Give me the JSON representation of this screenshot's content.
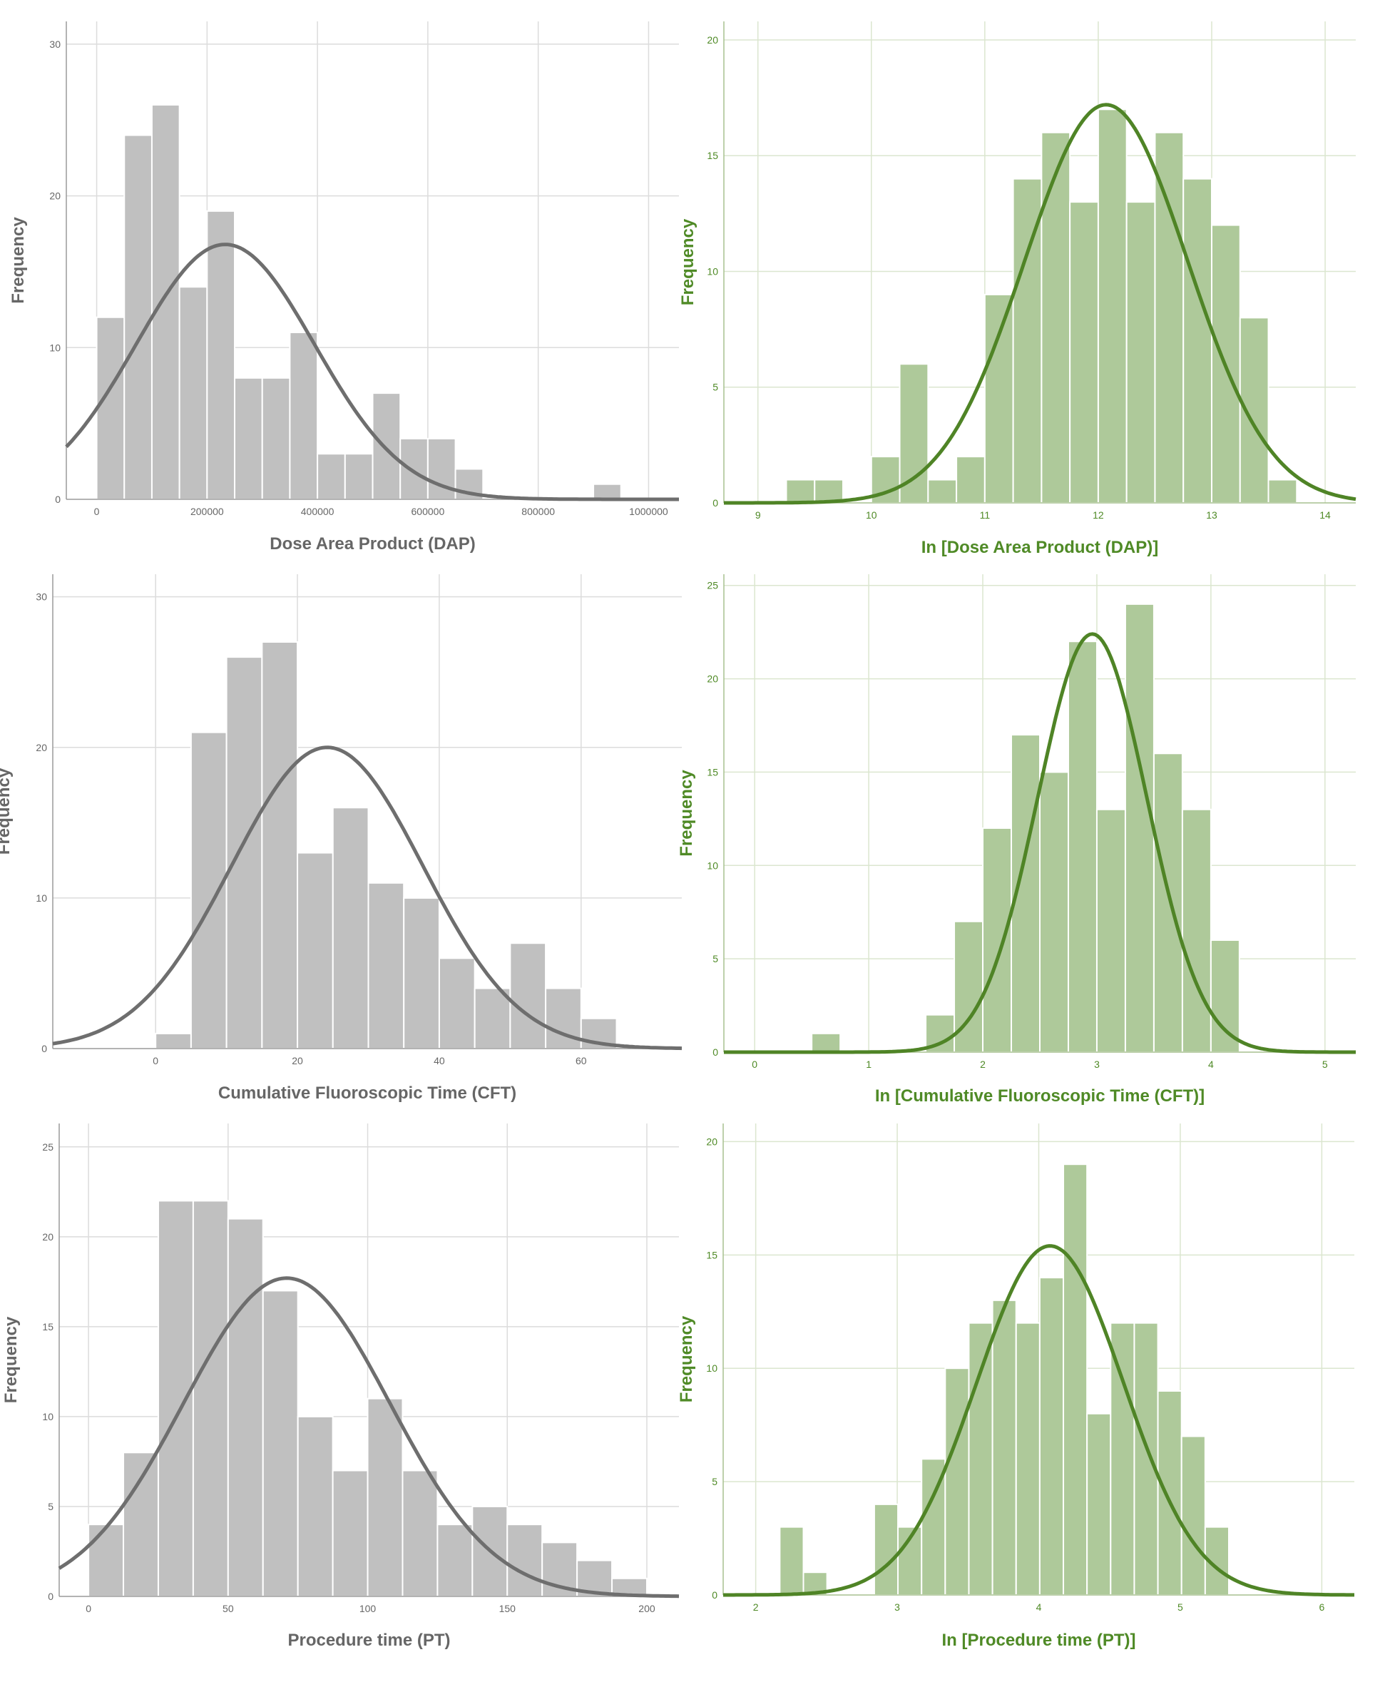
{
  "colors": {
    "gray_bar": "#c0c0c0",
    "gray_curve": "#6e6e6e",
    "gray_text": "#666666",
    "gray_grid": "#dcdcdc",
    "gray_axis": "#9a9a9a",
    "green_bar": "#aec99a",
    "green_curve": "#4f8426",
    "green_text": "#4f8a26",
    "green_grid": "#dbe6cf",
    "green_axis": "#a7c08f"
  },
  "chart_data": [
    {
      "type": "bar",
      "subtype": "histogram",
      "theme": "gray",
      "xlabel": "Dose Area Product (DAP)",
      "ylabel": "Frequency",
      "xlim": [
        -55000,
        1055000
      ],
      "ylim": [
        0,
        31.5
      ],
      "xticks": [
        0,
        200000,
        400000,
        600000,
        800000,
        1000000
      ],
      "xtick_labels": [
        "0",
        "200000",
        "400000",
        "600000",
        "800000",
        "1000000"
      ],
      "yticks": [
        0,
        10,
        20,
        30
      ],
      "bin_start": 0,
      "bin_width": 50000,
      "values": [
        12,
        24,
        26,
        14,
        19,
        8,
        8,
        11,
        3,
        3,
        7,
        4,
        4,
        2,
        0,
        0,
        0,
        0,
        1
      ],
      "normal_curve": {
        "mean": 233000,
        "peak": 16.8,
        "sd": 162000
      },
      "grid": true
    },
    {
      "type": "bar",
      "subtype": "histogram",
      "theme": "green",
      "xlabel": "In [Dose Area Product (DAP)]",
      "ylabel": "Frequency",
      "xlim": [
        8.7,
        14.27
      ],
      "ylim": [
        0,
        20.8
      ],
      "xticks": [
        9,
        10,
        11,
        12,
        13,
        14
      ],
      "xtick_labels": [
        "9",
        "10",
        "11",
        "12",
        "13",
        "14"
      ],
      "yticks": [
        0,
        5,
        10,
        15,
        20
      ],
      "bin_start": 9.25,
      "bin_width": 0.25,
      "values": [
        1,
        1,
        0,
        2,
        6,
        1,
        2,
        9,
        14,
        16,
        13,
        17,
        13,
        16,
        14,
        12,
        8,
        1
      ],
      "normal_curve": {
        "mean": 12.07,
        "peak": 17.2,
        "sd": 0.72
      },
      "grid": true
    },
    {
      "type": "bar",
      "subtype": "histogram",
      "theme": "gray",
      "xlabel": "Cumulative Fluoroscopic Time (CFT)",
      "ylabel": "Frequency",
      "xlim": [
        -14.5,
        74.2
      ],
      "ylim": [
        0,
        31.5
      ],
      "xticks": [
        0,
        20,
        40,
        60
      ],
      "xtick_labels": [
        "0",
        "20",
        "40",
        "60"
      ],
      "yticks": [
        0,
        10,
        20,
        30
      ],
      "bin_start": 0,
      "bin_width": 5,
      "values": [
        1,
        21,
        26,
        27,
        13,
        16,
        11,
        10,
        6,
        4,
        7,
        4,
        2
      ],
      "normal_curve": {
        "mean": 24.2,
        "peak": 20.0,
        "sd": 13.5
      },
      "grid": true
    },
    {
      "type": "bar",
      "subtype": "histogram",
      "theme": "green",
      "xlabel": "In [Cumulative Fluoroscopic Time (CFT)]",
      "ylabel": "Frequency",
      "xlim": [
        -0.27,
        5.27
      ],
      "ylim": [
        0,
        25.6
      ],
      "xticks": [
        0,
        1,
        2,
        3,
        4,
        5
      ],
      "xtick_labels": [
        "0",
        "1",
        "2",
        "3",
        "4",
        "5"
      ],
      "yticks": [
        0,
        5,
        10,
        15,
        20,
        25
      ],
      "bin_start": 0.5,
      "bin_width": 0.25,
      "values": [
        1,
        0,
        0,
        0,
        2,
        7,
        12,
        17,
        15,
        22,
        13,
        24,
        16,
        13,
        6
      ],
      "normal_curve": {
        "mean": 2.96,
        "peak": 22.4,
        "sd": 0.48
      },
      "grid": true
    },
    {
      "type": "bar",
      "subtype": "histogram",
      "theme": "gray",
      "xlabel": "Procedure time (PT)",
      "ylabel": "Frequency",
      "xlim": [
        -10.5,
        211.5
      ],
      "ylim": [
        0,
        26.3
      ],
      "xticks": [
        0,
        50,
        100,
        150,
        200
      ],
      "xtick_labels": [
        "0",
        "50",
        "100",
        "150",
        "200"
      ],
      "yticks": [
        0,
        5,
        10,
        15,
        20,
        25
      ],
      "bin_start": 0,
      "bin_width": 12.5,
      "values": [
        4,
        8,
        22,
        22,
        21,
        17,
        10,
        7,
        11,
        7,
        4,
        5,
        4,
        3,
        2,
        1
      ],
      "normal_curve": {
        "mean": 71,
        "peak": 17.7,
        "sd": 37
      },
      "grid": true
    },
    {
      "type": "bar",
      "subtype": "histogram",
      "theme": "green",
      "xlabel": "In [Procedure time (PT)]",
      "ylabel": "Frequency",
      "xlim": [
        1.77,
        6.23
      ],
      "ylim": [
        0,
        20.8
      ],
      "xticks": [
        2,
        3,
        4,
        5,
        6
      ],
      "xtick_labels": [
        "2",
        "3",
        "4",
        "5",
        "6"
      ],
      "yticks": [
        0,
        5,
        10,
        15,
        20
      ],
      "bin_start": 2.17,
      "bin_width": 0.167,
      "values": [
        3,
        1,
        0,
        0,
        4,
        3,
        6,
        10,
        12,
        13,
        12,
        14,
        19,
        8,
        12,
        12,
        9,
        7,
        3
      ],
      "normal_curve": {
        "mean": 4.08,
        "peak": 15.4,
        "sd": 0.52
      },
      "grid": true
    }
  ]
}
